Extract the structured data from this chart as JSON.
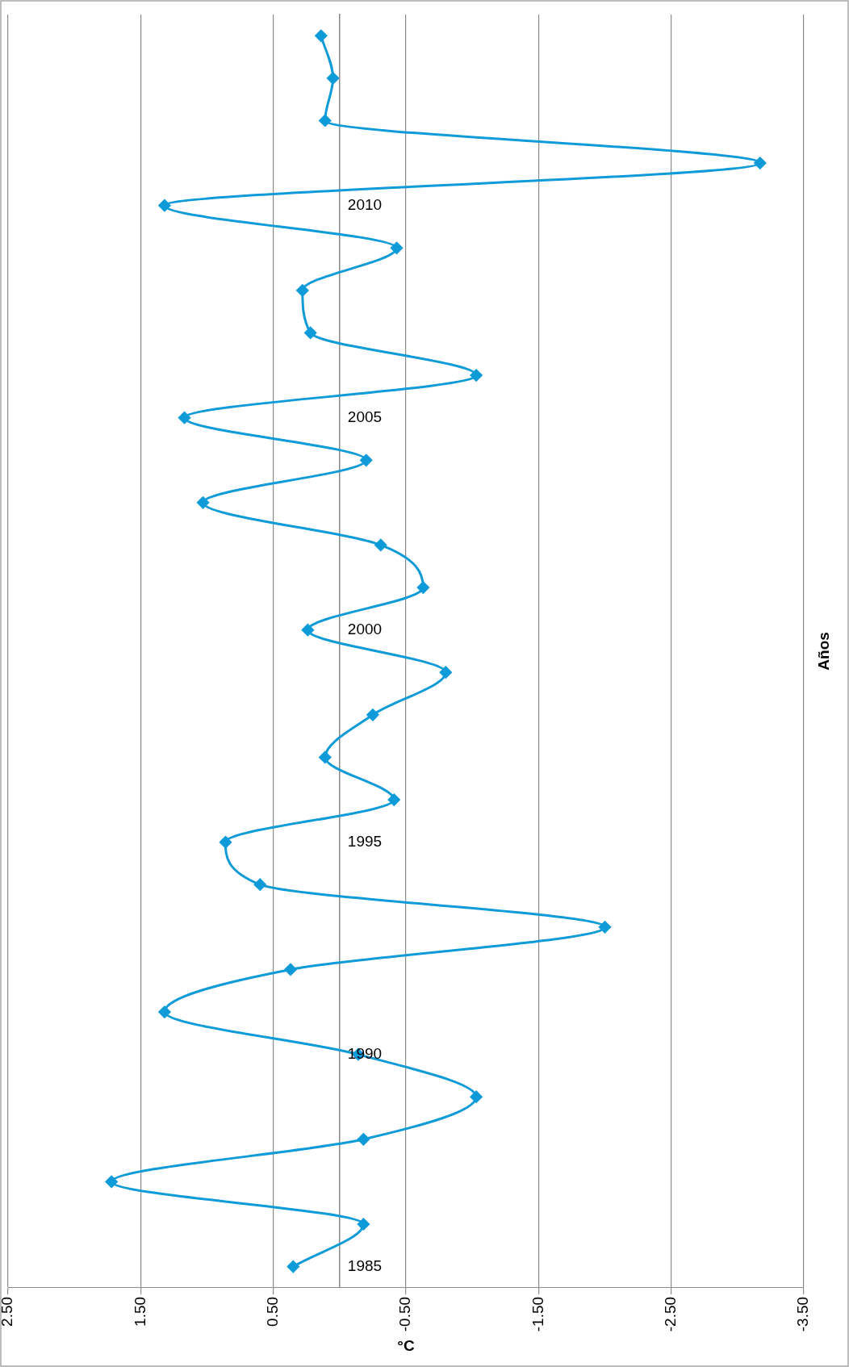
{
  "chart_data": {
    "type": "line",
    "orientation": "horizontal",
    "xlabel": "°C",
    "ylabel": "Años",
    "categories": [
      null,
      null,
      null,
      null,
      "2010",
      null,
      null,
      null,
      null,
      "2005",
      null,
      null,
      null,
      null,
      "2000",
      null,
      null,
      null,
      null,
      "1995",
      null,
      null,
      null,
      null,
      "1990",
      null,
      null,
      null,
      null,
      "1985"
    ],
    "values": [
      0.14,
      0.05,
      0.11,
      -3.17,
      1.32,
      -0.43,
      0.28,
      0.22,
      -1.03,
      1.17,
      -0.2,
      1.03,
      -0.31,
      -0.63,
      0.24,
      -0.8,
      -0.25,
      0.11,
      -0.41,
      0.86,
      0.6,
      -2.0,
      0.37,
      1.32,
      -0.14,
      -1.03,
      -0.18,
      1.72,
      -0.18,
      0.35
    ],
    "color": "#0f9ad8",
    "xlim": [
      2.5,
      -3.5
    ],
    "xticks": [
      {
        "value": 2.5,
        "label": "2.50"
      },
      {
        "value": 1.5,
        "label": "1.50"
      },
      {
        "value": 0.5,
        "label": "0.50"
      },
      {
        "value": -0.5,
        "label": "-0.50"
      },
      {
        "value": -1.5,
        "label": "-1.50"
      },
      {
        "value": -2.5,
        "label": "-2.50"
      },
      {
        "value": -3.5,
        "label": "-3.50"
      }
    ],
    "grid": "x",
    "marker": "diamond",
    "line_style": "solid"
  }
}
